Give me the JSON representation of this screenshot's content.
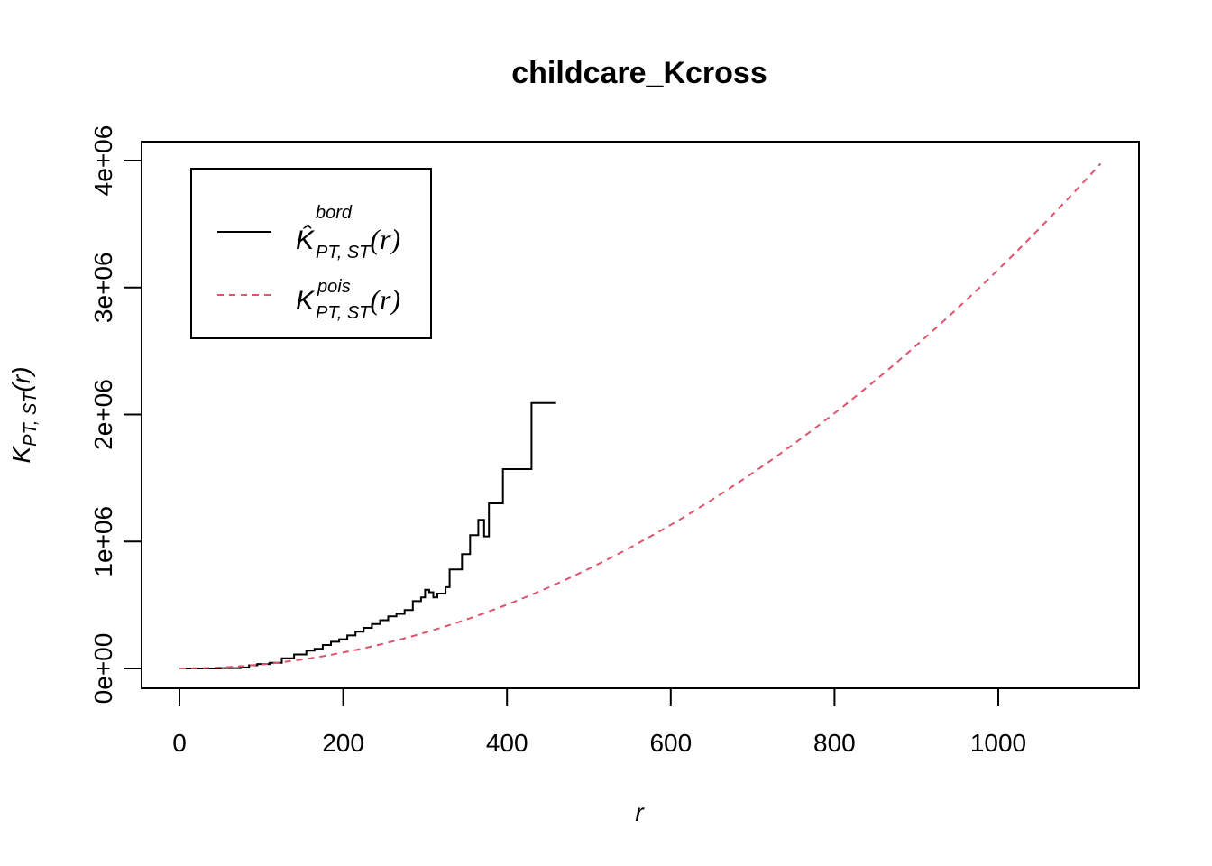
{
  "chart_data": {
    "type": "line",
    "title": "childcare_Kcross",
    "xlabel": "r",
    "ylabel": {
      "main": "K",
      "sub": "PT, ST",
      "arg": "(r)"
    },
    "xlim": [
      0,
      1125
    ],
    "ylim": [
      0,
      4000000
    ],
    "x_ticks": [
      0,
      200,
      400,
      600,
      800,
      1000
    ],
    "x_tick_labels": [
      "0",
      "200",
      "400",
      "600",
      "800",
      "1000"
    ],
    "y_ticks": [
      0,
      1000000,
      2000000,
      3000000,
      4000000
    ],
    "y_tick_labels": [
      "0e+00",
      "1e+06",
      "2e+06",
      "3e+06",
      "4e+06"
    ],
    "legend_position": "top-left",
    "series": [
      {
        "name": "bord",
        "legend": {
          "main": "K̂",
          "sup": "bord",
          "sub": "PT, ST",
          "arg": "(r)"
        },
        "color": "#000000",
        "style": "solid",
        "points": [
          [
            0,
            0
          ],
          [
            50,
            3000
          ],
          [
            75,
            8000
          ],
          [
            85,
            25000
          ],
          [
            95,
            35000
          ],
          [
            110,
            45000
          ],
          [
            125,
            80000
          ],
          [
            140,
            110000
          ],
          [
            155,
            140000
          ],
          [
            165,
            155000
          ],
          [
            175,
            185000
          ],
          [
            185,
            210000
          ],
          [
            195,
            230000
          ],
          [
            205,
            260000
          ],
          [
            215,
            290000
          ],
          [
            225,
            320000
          ],
          [
            235,
            350000
          ],
          [
            245,
            380000
          ],
          [
            255,
            410000
          ],
          [
            265,
            430000
          ],
          [
            275,
            460000
          ],
          [
            285,
            530000
          ],
          [
            295,
            560000
          ],
          [
            300,
            620000
          ],
          [
            305,
            600000
          ],
          [
            310,
            560000
          ],
          [
            315,
            590000
          ],
          [
            325,
            640000
          ],
          [
            330,
            780000
          ],
          [
            345,
            900000
          ],
          [
            355,
            1050000
          ],
          [
            365,
            1170000
          ],
          [
            372,
            1040000
          ],
          [
            378,
            1300000
          ],
          [
            395,
            1570000
          ],
          [
            430,
            2090000
          ],
          [
            460,
            2090000
          ]
        ]
      },
      {
        "name": "pois",
        "legend": {
          "main": "K",
          "sup": "pois",
          "sub": "PT, ST",
          "arg": "(r)"
        },
        "color": "#DF536B",
        "style": "dashed",
        "function": "pi*r^2",
        "x_range": [
          0,
          1125
        ]
      }
    ]
  }
}
